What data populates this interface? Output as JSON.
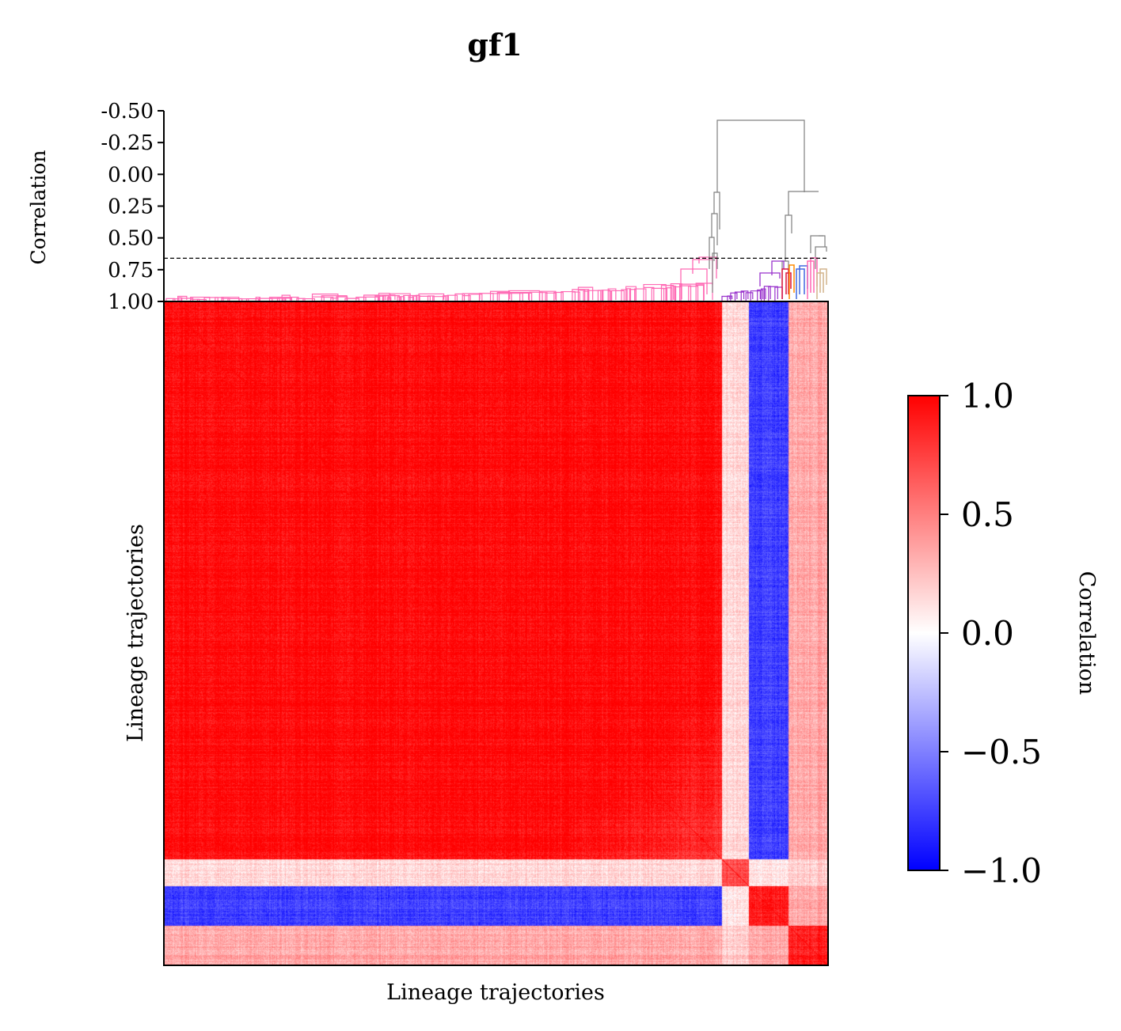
{
  "chart_data": {
    "type": "heatmap",
    "title": "gf1",
    "dendrogram": {
      "ylabel": "Correlation",
      "ytick_labels": [
        "-0.50",
        "-0.25",
        "0.00",
        "0.25",
        "0.50",
        "0.75",
        "1.00"
      ],
      "yticks": [
        -0.5,
        -0.25,
        0.0,
        0.25,
        0.5,
        0.75,
        1.0
      ],
      "ylim": [
        1.0,
        -0.5
      ],
      "threshold": 0.66,
      "cluster_colors": [
        "#ff69b4",
        "#808080",
        "#9932cc",
        "#dc143c",
        "#ff8c00",
        "#4169e1",
        "#d2b48c"
      ]
    },
    "heatmap": {
      "xlabel": "Lineage trajectories",
      "ylabel": "Lineage trajectories",
      "value_range": [
        -1.0,
        1.0
      ],
      "block_boundaries_fraction": [
        0.84,
        0.88,
        0.94,
        1.0
      ],
      "colors": {
        "low": "#0000ff",
        "mid": "#ffffff",
        "high": "#ff0000"
      }
    },
    "colorbar": {
      "label": "Correlation",
      "ticks": [
        1.0,
        0.5,
        0.0,
        -0.5,
        -1.0
      ],
      "tick_labels": [
        "1.0",
        "0.5",
        "0.0",
        "−0.5",
        "−1.0"
      ],
      "range": [
        -1.0,
        1.0
      ]
    }
  }
}
